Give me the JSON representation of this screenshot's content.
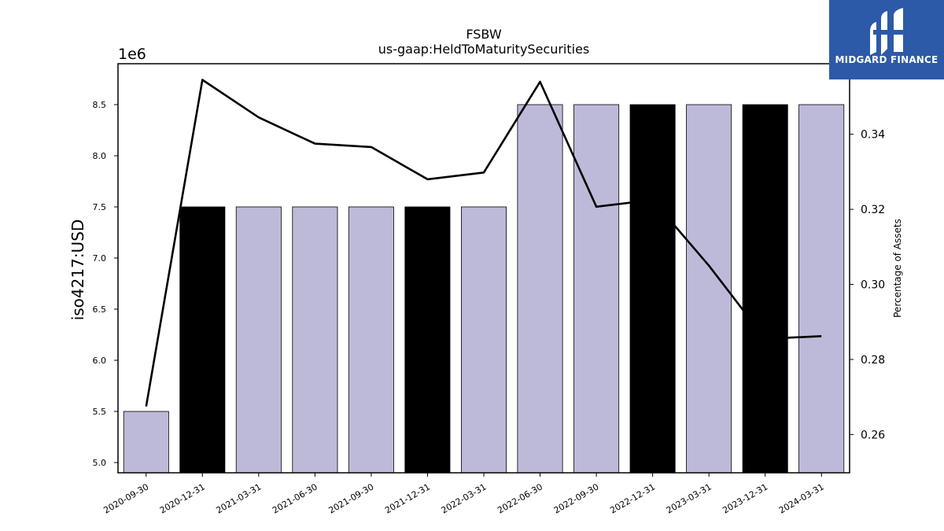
{
  "logo": {
    "text": "MIDGARD FINANCE"
  },
  "chart_data": {
    "type": "bar",
    "title": "FSBW",
    "subtitle": "us-gaap:HeldToMaturitySecurities",
    "categories": [
      "2020-09-30",
      "2020-12-31",
      "2021-03-31",
      "2021-06-30",
      "2021-09-30",
      "2021-12-31",
      "2022-03-31",
      "2022-06-30",
      "2022-09-30",
      "2022-12-31",
      "2023-03-31",
      "2023-12-31",
      "2024-03-31"
    ],
    "values": [
      5500000,
      7500000,
      7500000,
      7500000,
      7500000,
      7500000,
      7500000,
      8500000,
      8500000,
      8500000,
      8500000,
      8500000,
      8500000
    ],
    "bar_colors": [
      "#bdbad9",
      "#000000",
      "#bdbad9",
      "#bdbad9",
      "#bdbad9",
      "#000000",
      "#bdbad9",
      "#bdbad9",
      "#bdbad9",
      "#000000",
      "#bdbad9",
      "#000000",
      "#bdbad9"
    ],
    "line_values": [
      0.2675,
      0.3545,
      0.3445,
      0.3375,
      0.3366,
      0.328,
      0.3298,
      0.354,
      0.3207,
      0.3225,
      0.305,
      0.2855,
      0.2862
    ],
    "ylabel": "iso4217:USD",
    "y_offset_label": "1e6",
    "y2label": "Percentage of Assets",
    "ylim": [
      4900000,
      8900000
    ],
    "y2lim": [
      0.2498,
      0.3588
    ],
    "yticks": [
      5.0,
      5.5,
      6.0,
      6.5,
      7.0,
      7.5,
      8.0,
      8.5
    ],
    "ytick_labels": [
      "5.0",
      "5.5",
      "6.0",
      "6.5",
      "7.0",
      "7.5",
      "8.0",
      "8.5"
    ],
    "y2ticks": [
      0.26,
      0.28,
      0.3,
      0.32,
      0.34
    ],
    "y2tick_labels": [
      "0.26",
      "0.28",
      "0.30",
      "0.32",
      "0.34"
    ],
    "grid": false,
    "colors": {
      "bar_light": "#bdbad9",
      "bar_dark": "#000000",
      "line": "#000000"
    }
  }
}
